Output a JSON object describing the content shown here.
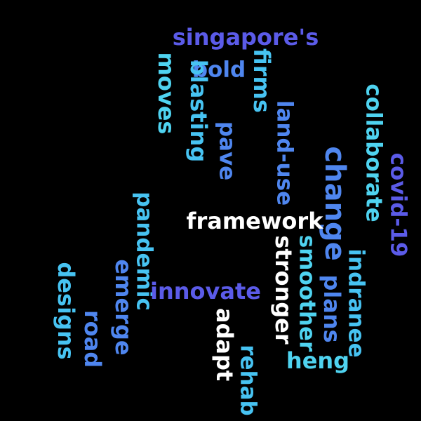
{
  "words": {
    "singapore": {
      "text": "singapore's",
      "color": "#5b5be8"
    },
    "bold": {
      "text": "bold",
      "color": "#4f86ef"
    },
    "moves": {
      "text": "moves",
      "color": "#4fd3f0"
    },
    "blasting": {
      "text": "blasting",
      "color": "#47c3f2"
    },
    "firms": {
      "text": "firms",
      "color": "#47c3f2"
    },
    "pave": {
      "text": "pave",
      "color": "#4f86ef"
    },
    "landuse": {
      "text": "land-use",
      "color": "#4f86ef"
    },
    "collaborate": {
      "text": "collaborate",
      "color": "#4fd3f0"
    },
    "covid": {
      "text": "covid-19",
      "color": "#5b5be8"
    },
    "change": {
      "text": "change",
      "color": "#4f86ef"
    },
    "framework": {
      "text": "framework",
      "color": "#ffffff"
    },
    "pandemic": {
      "text": "pandemic",
      "color": "#47c3f2"
    },
    "stronger": {
      "text": "stronger",
      "color": "#ffffff"
    },
    "smoother": {
      "text": "smoother",
      "color": "#4fd3f0"
    },
    "plans": {
      "text": "plans",
      "color": "#4f86ef"
    },
    "indranee": {
      "text": "indranee",
      "color": "#47c3f2"
    },
    "emerge": {
      "text": "emerge",
      "color": "#4f86ef"
    },
    "innovate": {
      "text": "innovate",
      "color": "#5b5be8"
    },
    "designs": {
      "text": "designs",
      "color": "#47c3f2"
    },
    "road": {
      "text": "road",
      "color": "#4f86ef"
    },
    "adapt": {
      "text": "adapt",
      "color": "#ffffff"
    },
    "heng": {
      "text": "heng",
      "color": "#4fd3f0"
    },
    "rehab": {
      "text": "rehab",
      "color": "#47c3f2"
    }
  },
  "colors": {
    "background": "#000000"
  }
}
